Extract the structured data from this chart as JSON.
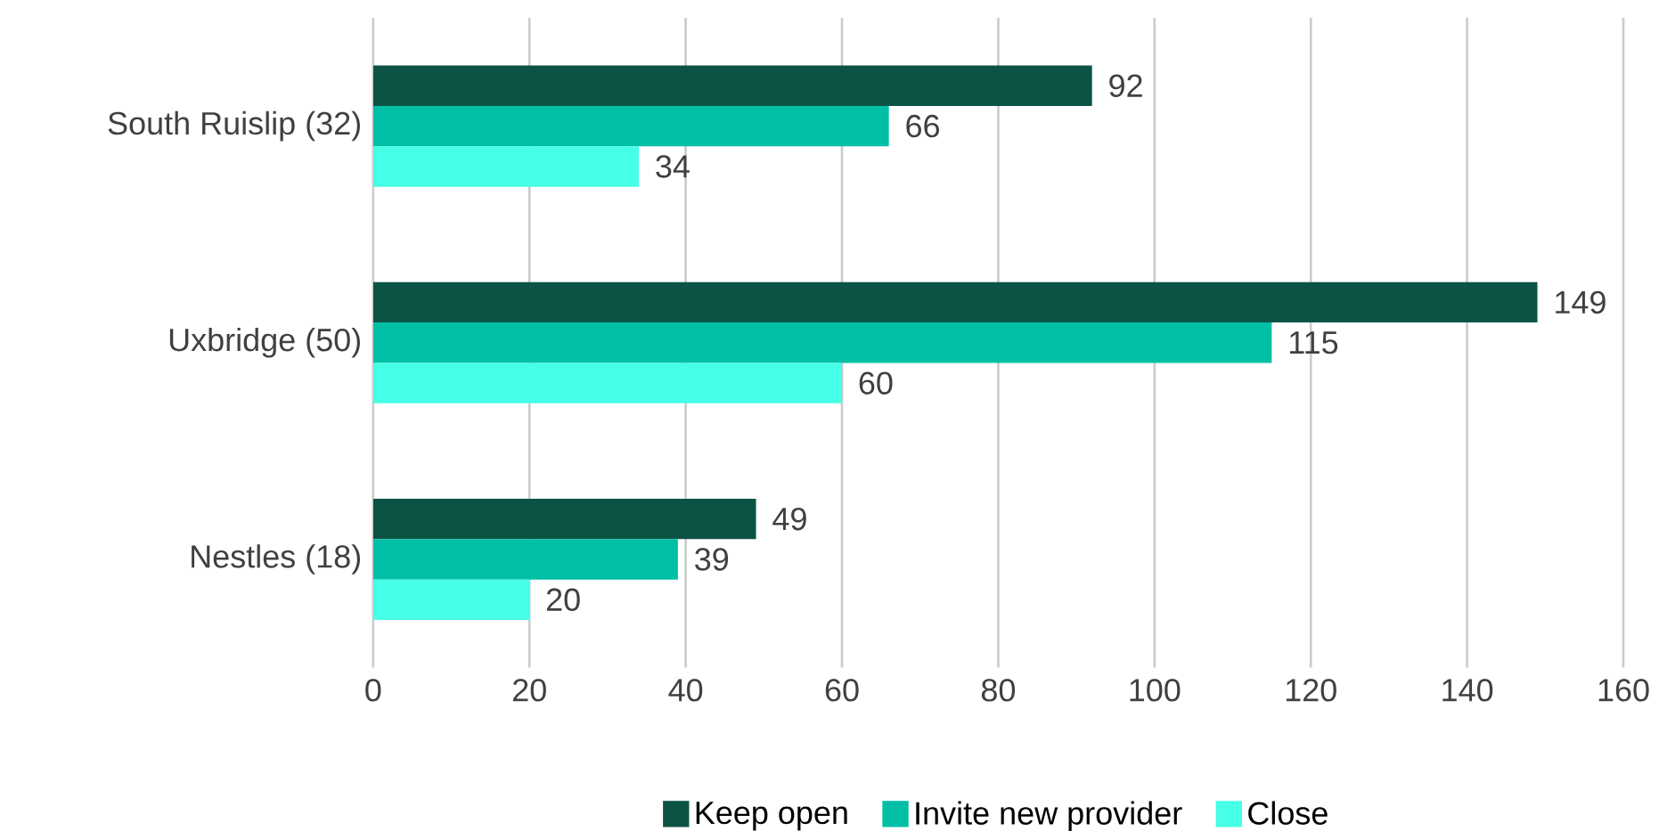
{
  "chart_data": {
    "type": "bar",
    "orientation": "horizontal",
    "categories": [
      "South Ruislip (32)",
      "Uxbridge (50)",
      "Nestles (18)"
    ],
    "series": [
      {
        "name": "Keep open",
        "color": "#0b5345",
        "values": [
          92,
          149,
          49
        ]
      },
      {
        "name": "Invite new provider",
        "color": "#00bfa5",
        "values": [
          66,
          115,
          39
        ]
      },
      {
        "name": "Close",
        "color": "#45ffe6",
        "values": [
          34,
          60,
          20
        ]
      }
    ],
    "xlim": [
      0,
      160
    ],
    "xticks": [
      0,
      20,
      40,
      60,
      80,
      100,
      120,
      140,
      160
    ],
    "grid": "x",
    "legend": "bottom",
    "data_labels": true
  }
}
